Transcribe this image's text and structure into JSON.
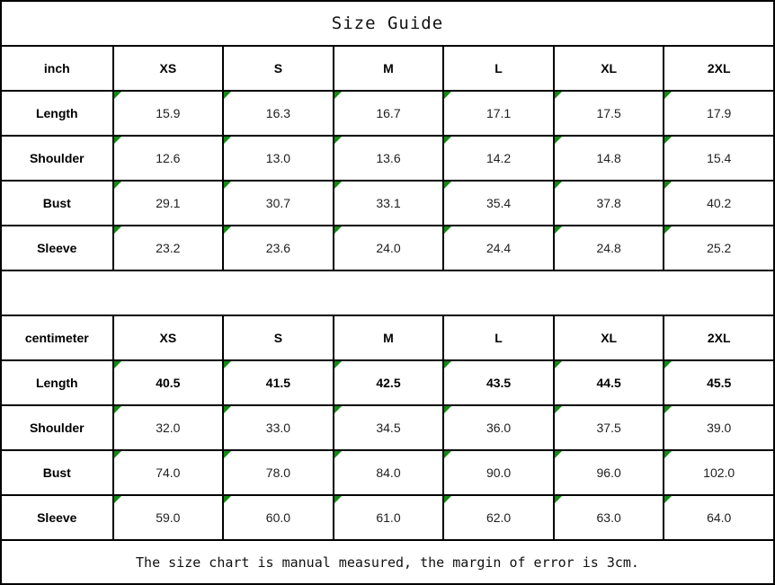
{
  "title": "Size Guide",
  "footer": "The size chart is manual measured, the margin of error is 3cm.",
  "marker_color": "#168a16",
  "border_color": "#000000",
  "chart_data": [
    {
      "type": "table",
      "unit_label": "inch",
      "columns": [
        "XS",
        "S",
        "M",
        "L",
        "XL",
        "2XL"
      ],
      "rows": [
        {
          "label": "Length",
          "bold": false,
          "values": [
            "15.9",
            "16.3",
            "16.7",
            "17.1",
            "17.5",
            "17.9"
          ]
        },
        {
          "label": "Shoulder",
          "bold": false,
          "values": [
            "12.6",
            "13.0",
            "13.6",
            "14.2",
            "14.8",
            "15.4"
          ]
        },
        {
          "label": "Bust",
          "bold": false,
          "values": [
            "29.1",
            "30.7",
            "33.1",
            "35.4",
            "37.8",
            "40.2"
          ]
        },
        {
          "label": "Sleeve",
          "bold": false,
          "values": [
            "23.2",
            "23.6",
            "24.0",
            "24.4",
            "24.8",
            "25.2"
          ]
        }
      ]
    },
    {
      "type": "table",
      "unit_label": "centimeter",
      "columns": [
        "XS",
        "S",
        "M",
        "L",
        "XL",
        "2XL"
      ],
      "rows": [
        {
          "label": "Length",
          "bold": true,
          "values": [
            "40.5",
            "41.5",
            "42.5",
            "43.5",
            "44.5",
            "45.5"
          ]
        },
        {
          "label": "Shoulder",
          "bold": false,
          "values": [
            "32.0",
            "33.0",
            "34.5",
            "36.0",
            "37.5",
            "39.0"
          ]
        },
        {
          "label": "Bust",
          "bold": false,
          "values": [
            "74.0",
            "78.0",
            "84.0",
            "90.0",
            "96.0",
            "102.0"
          ]
        },
        {
          "label": "Sleeve",
          "bold": false,
          "values": [
            "59.0",
            "60.0",
            "61.0",
            "62.0",
            "63.0",
            "64.0"
          ]
        }
      ]
    }
  ]
}
